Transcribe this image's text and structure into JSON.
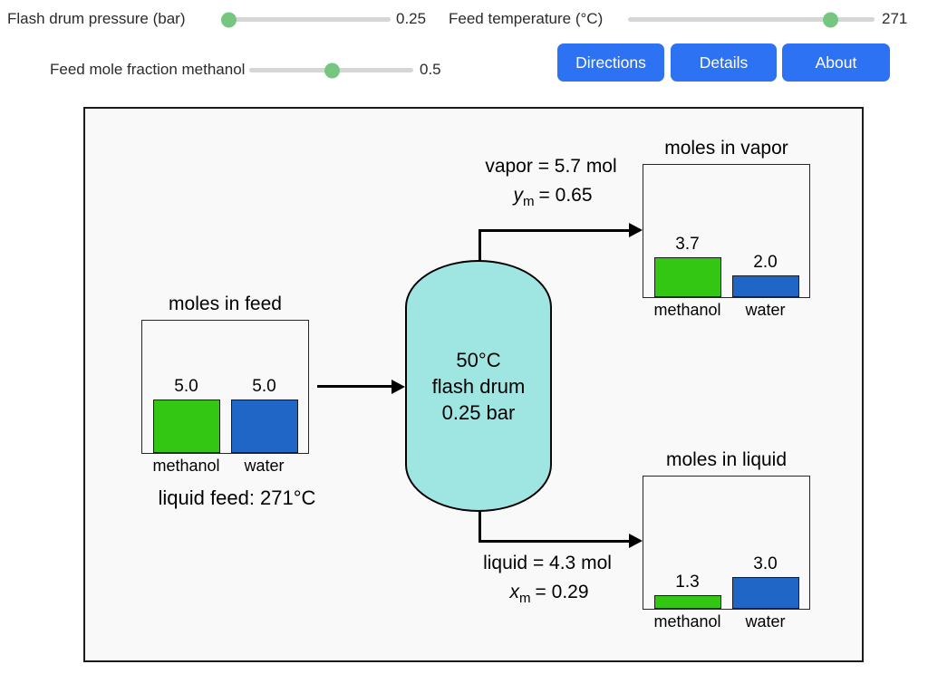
{
  "colors": {
    "accent-blue": "#2d72f2",
    "bar-green": "#33c613",
    "bar-blue": "#1f66c6",
    "drum-fill": "#9fe6e3",
    "slider-handle": "#77c67f",
    "slider-track": "#d6d6d6"
  },
  "controls": {
    "pressure": {
      "label": "Flash drum pressure (bar)",
      "value": "0.25",
      "fraction": 0.04
    },
    "temperature": {
      "label": "Feed temperature (°C)",
      "value": "271",
      "fraction": 0.82
    },
    "mole_fraction": {
      "label": "Feed mole fraction methanol",
      "value": "0.5",
      "fraction": 0.5
    },
    "buttons": {
      "directions": "Directions",
      "details": "Details",
      "about": "About"
    }
  },
  "diagram": {
    "feed_note": "liquid feed: 271°C",
    "drum": {
      "lines": [
        "50°C",
        "flash drum",
        "0.25 bar"
      ]
    },
    "vapor_stream": {
      "flow": "vapor = 5.7 mol",
      "frac_var": "y",
      "frac_sub": "m",
      "frac_rest": "= 0.65"
    },
    "liquid_stream": {
      "flow": "liquid = 4.3 mol",
      "frac_var": "x",
      "frac_sub": "m",
      "frac_rest": "= 0.29"
    }
  },
  "chart_data": [
    {
      "type": "bar",
      "title": "moles in feed",
      "categories": [
        "methanol",
        "water"
      ],
      "values": [
        5.0,
        5.0
      ],
      "value_labels": [
        "5.0",
        "5.0"
      ],
      "ylim": [
        0,
        12.5
      ],
      "series_colors": [
        "#33c613",
        "#1f66c6"
      ],
      "grid": false
    },
    {
      "type": "bar",
      "title": "moles in vapor",
      "categories": [
        "methanol",
        "water"
      ],
      "values": [
        3.7,
        2.0
      ],
      "value_labels": [
        "3.7",
        "2.0"
      ],
      "ylim": [
        0,
        12.5
      ],
      "series_colors": [
        "#33c613",
        "#1f66c6"
      ],
      "grid": false
    },
    {
      "type": "bar",
      "title": "moles in liquid",
      "categories": [
        "methanol",
        "water"
      ],
      "values": [
        1.3,
        3.0
      ],
      "value_labels": [
        "1.3",
        "3.0"
      ],
      "ylim": [
        0,
        12.5
      ],
      "series_colors": [
        "#33c613",
        "#1f66c6"
      ],
      "grid": false
    }
  ]
}
